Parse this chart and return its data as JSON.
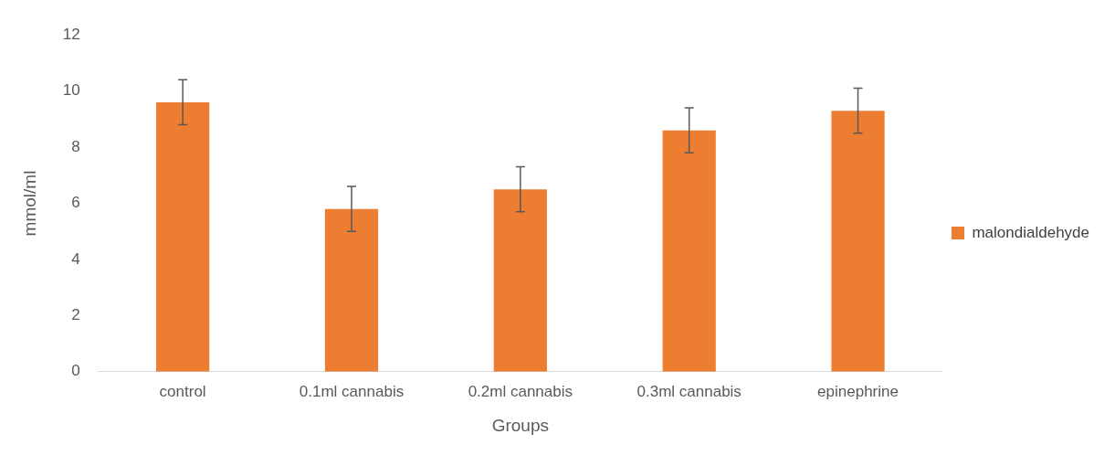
{
  "chart_data": {
    "type": "bar",
    "xlabel": "Groups",
    "ylabel": "mmol/ml",
    "categories": [
      "control",
      "0.1ml cannabis",
      "0.2ml cannabis",
      "0.3ml cannabis",
      "epinephrine"
    ],
    "series": [
      {
        "name": "malondialdehyde",
        "color": "#ed7d31",
        "values": [
          9.6,
          5.8,
          6.5,
          8.6,
          9.3
        ],
        "errors": [
          0.8,
          0.8,
          0.8,
          0.8,
          0.8
        ]
      }
    ],
    "ylim": [
      0,
      12
    ],
    "yticks": [
      0,
      2,
      4,
      6,
      8,
      10,
      12
    ],
    "grid": false,
    "legend": "right"
  }
}
